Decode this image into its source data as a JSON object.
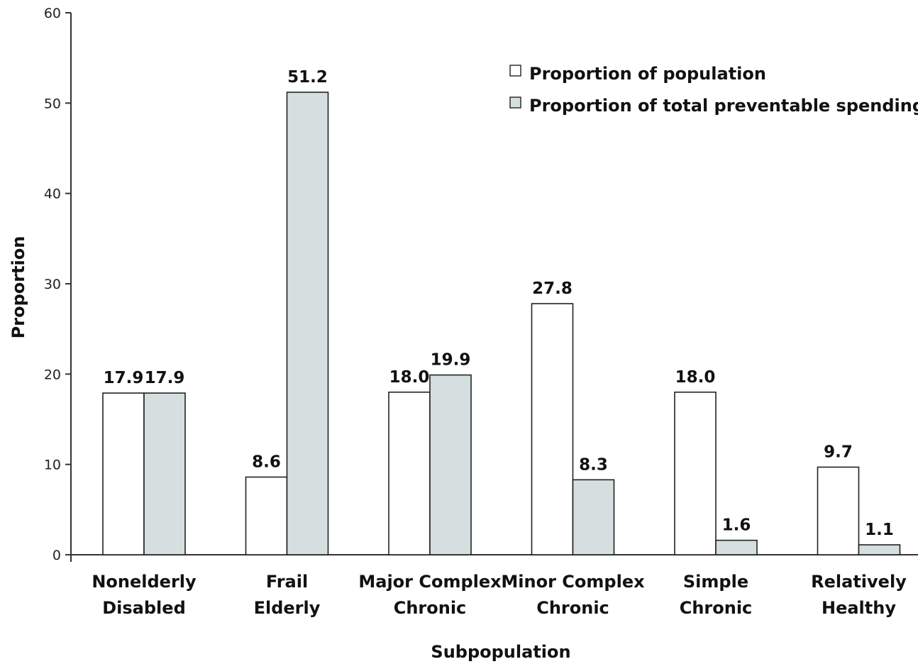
{
  "chart_data": {
    "type": "bar",
    "categories": [
      [
        "Nonelderly",
        "Disabled"
      ],
      [
        "Frail",
        "Elderly"
      ],
      [
        "Major Complex",
        "Chronic"
      ],
      [
        "Minor Complex",
        "Chronic"
      ],
      [
        "Simple",
        "Chronic"
      ],
      [
        "Relatively",
        "Healthy"
      ]
    ],
    "series": [
      {
        "name": "Proportion of population",
        "color": "#ffffff",
        "values": [
          17.9,
          8.6,
          18.0,
          27.8,
          18.0,
          9.7
        ],
        "labels": [
          "17.9",
          "8.6",
          "18.0",
          "27.8",
          "18.0",
          "9.7"
        ]
      },
      {
        "name": "Proportion of total preventable spending",
        "color": "#d5dfdf",
        "values": [
          17.9,
          51.2,
          19.9,
          8.3,
          1.6,
          1.1
        ],
        "labels": [
          "17.9",
          "51.2",
          "19.9",
          "8.3",
          "1.6",
          "1.1"
        ]
      }
    ],
    "xlabel": "Subpopulation",
    "ylabel": "Proportion",
    "ylim": [
      0,
      60
    ],
    "yticks": [
      "0",
      "10",
      "20",
      "30",
      "40",
      "50",
      "60"
    ],
    "grid": false,
    "legend_position": "top-right"
  }
}
